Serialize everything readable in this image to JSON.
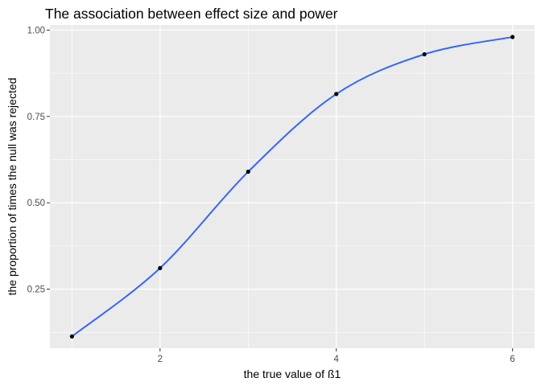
{
  "chart_data": {
    "type": "scatter",
    "title": "The association between effect size and power",
    "xlabel": "the true value of ß1",
    "ylabel": "the proportion of times the null was rejected",
    "x": [
      1,
      2,
      3,
      4,
      5,
      6
    ],
    "y": [
      0.113,
      0.311,
      0.59,
      0.815,
      0.93,
      0.98
    ],
    "smooth_line": {
      "color": "#3366FF"
    },
    "point_color": "#000000",
    "panel_background": "#EBEBEB",
    "grid_color": "#FFFFFF",
    "xlim": [
      0.75,
      6.25
    ],
    "ylim": [
      0.079,
      1.015
    ],
    "x_ticks": [
      2,
      4,
      6
    ],
    "x_tick_labels": [
      "2",
      "4",
      "6"
    ],
    "y_ticks": [
      0.25,
      0.5,
      0.75,
      1.0
    ],
    "y_tick_labels": [
      "0.25",
      "0.50",
      "0.75",
      "1.00"
    ],
    "grid": true
  }
}
